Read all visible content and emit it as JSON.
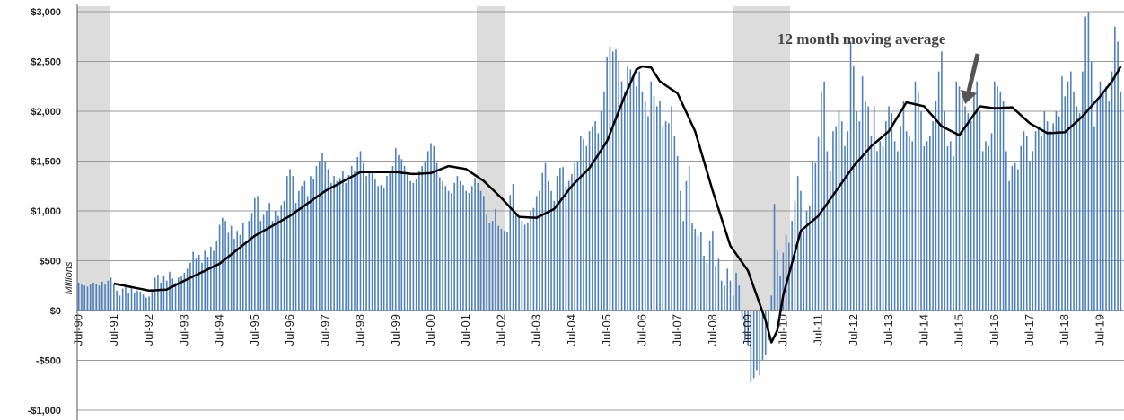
{
  "chart_data": {
    "type": "bar",
    "annotation": "12 month moving average",
    "y_label": "Millions",
    "ylim": [
      -1000,
      3000
    ],
    "yticks": [
      {
        "value": 3000,
        "label": "$3,000"
      },
      {
        "value": 2500,
        "label": "$2,500"
      },
      {
        "value": 2000,
        "label": "$2,000"
      },
      {
        "value": 1500,
        "label": "$1,500"
      },
      {
        "value": 1000,
        "label": "$1,000"
      },
      {
        "value": 500,
        "label": "$500"
      },
      {
        "value": 0,
        "label": "$0"
      },
      {
        "value": -500,
        "label": "-$500"
      },
      {
        "value": -1000,
        "label": "-$1,000"
      }
    ],
    "grid": true,
    "categories": [
      "Jul-90",
      null,
      null,
      null,
      null,
      null,
      null,
      null,
      null,
      null,
      null,
      null,
      "Jul-91",
      null,
      null,
      null,
      null,
      null,
      null,
      null,
      null,
      null,
      null,
      null,
      "Jul-92",
      null,
      null,
      null,
      null,
      null,
      null,
      null,
      null,
      null,
      null,
      null,
      "Jul-93",
      null,
      null,
      null,
      null,
      null,
      null,
      null,
      null,
      null,
      null,
      null,
      "Jul-94",
      null,
      null,
      null,
      null,
      null,
      null,
      null,
      null,
      null,
      null,
      null,
      "Jul-95",
      null,
      null,
      null,
      null,
      null,
      null,
      null,
      null,
      null,
      null,
      null,
      "Jul-96",
      null,
      null,
      null,
      null,
      null,
      null,
      null,
      null,
      null,
      null,
      null,
      "Jul-97",
      null,
      null,
      null,
      null,
      null,
      null,
      null,
      null,
      null,
      null,
      null,
      "Jul-98",
      null,
      null,
      null,
      null,
      null,
      null,
      null,
      null,
      null,
      null,
      null,
      "Jul-99",
      null,
      null,
      null,
      null,
      null,
      null,
      null,
      null,
      null,
      null,
      null,
      "Jul-00",
      null,
      null,
      null,
      null,
      null,
      null,
      null,
      null,
      null,
      null,
      null,
      "Jul-01",
      null,
      null,
      null,
      null,
      null,
      null,
      null,
      null,
      null,
      null,
      null,
      "Jul-02",
      null,
      null,
      null,
      null,
      null,
      null,
      null,
      null,
      null,
      null,
      null,
      "Jul-03",
      null,
      null,
      null,
      null,
      null,
      null,
      null,
      null,
      null,
      null,
      null,
      "Jul-04",
      null,
      null,
      null,
      null,
      null,
      null,
      null,
      null,
      null,
      null,
      null,
      "Jul-05",
      null,
      null,
      null,
      null,
      null,
      null,
      null,
      null,
      null,
      null,
      null,
      "Jul-06",
      null,
      null,
      null,
      null,
      null,
      null,
      null,
      null,
      null,
      null,
      null,
      "Jul-07",
      null,
      null,
      null,
      null,
      null,
      null,
      null,
      null,
      null,
      null,
      null,
      "Jul-08",
      null,
      null,
      null,
      null,
      null,
      null,
      null,
      null,
      null,
      null,
      null,
      "Jul-09",
      null,
      null,
      null,
      null,
      null,
      null,
      null,
      null,
      null,
      null,
      null,
      "Jul-10",
      null,
      null,
      null,
      null,
      null,
      null,
      null,
      null,
      null,
      null,
      null,
      "Jul-11",
      null,
      null,
      null,
      null,
      null,
      null,
      null,
      null,
      null,
      null,
      null,
      "Jul-12",
      null,
      null,
      null,
      null,
      null,
      null,
      null,
      null,
      null,
      null,
      null,
      "Jul-13",
      null,
      null,
      null,
      null,
      null,
      null,
      null,
      null,
      null,
      null,
      null,
      "Jul-14",
      null,
      null,
      null,
      null,
      null,
      null,
      null,
      null,
      null,
      null,
      null,
      "Jul-15",
      null,
      null,
      null,
      null,
      null,
      null,
      null,
      null,
      null,
      null,
      null,
      "Jul-16",
      null,
      null,
      null,
      null,
      null,
      null,
      null,
      null,
      null,
      null,
      null,
      "Jul-17",
      null,
      null,
      null,
      null,
      null,
      null,
      null,
      null,
      null,
      null,
      null,
      "Jul-18",
      null,
      null,
      null,
      null,
      null,
      null,
      null,
      null,
      null,
      null,
      null,
      "Jul-19",
      null,
      null,
      null,
      null,
      null,
      null,
      null
    ],
    "series": [
      {
        "type": "bar",
        "color": "#4f81bd",
        "values": [
          280,
          260,
          250,
          240,
          260,
          280,
          270,
          250,
          290,
          260,
          300,
          330,
          260,
          200,
          150,
          220,
          250,
          180,
          240,
          170,
          200,
          190,
          160,
          130,
          140,
          200,
          330,
          360,
          280,
          350,
          300,
          390,
          320,
          280,
          330,
          350,
          380,
          420,
          480,
          590,
          520,
          560,
          480,
          600,
          540,
          640,
          600,
          700,
          860,
          930,
          900,
          780,
          850,
          720,
          800,
          760,
          880,
          700,
          900,
          980,
          1130,
          1150,
          900,
          960,
          1000,
          1080,
          900,
          1000,
          950,
          1060,
          1100,
          1350,
          1420,
          1350,
          1080,
          1200,
          1250,
          1300,
          1150,
          1350,
          1320,
          1450,
          1500,
          1580,
          1500,
          1420,
          1280,
          1350,
          1300,
          1330,
          1400,
          1280,
          1360,
          1450,
          1400,
          1540,
          1600,
          1480,
          1350,
          1380,
          1400,
          1320,
          1250,
          1260,
          1230,
          1350,
          1400,
          1450,
          1630,
          1560,
          1520,
          1450,
          1380,
          1300,
          1280,
          1320,
          1400,
          1450,
          1500,
          1600,
          1680,
          1650,
          1480,
          1340,
          1300,
          1250,
          1200,
          1180,
          1280,
          1350,
          1300,
          1260,
          1200,
          1180,
          1250,
          1330,
          1280,
          1200,
          1150,
          960,
          880,
          900,
          1020,
          850,
          820,
          800,
          790,
          1160,
          1270,
          980,
          950,
          900,
          860,
          880,
          1000,
          1030,
          1150,
          1200,
          1380,
          1480,
          1300,
          1200,
          1100,
          1350,
          1430,
          1440,
          1250,
          1300,
          1370,
          1480,
          1500,
          1750,
          1720,
          1650,
          1800,
          1850,
          1900,
          1780,
          2000,
          2200,
          2550,
          2650,
          2600,
          2620,
          2500,
          2300,
          2200,
          2450,
          2420,
          2350,
          2250,
          2400,
          2200,
          2100,
          1950,
          2300,
          2150,
          2050,
          2100,
          1850,
          1900,
          1880,
          2050,
          1750,
          1550,
          1200,
          900,
          1300,
          1450,
          880,
          820,
          750,
          790,
          550,
          480,
          700,
          800,
          450,
          520,
          300,
          250,
          420,
          300,
          150,
          380,
          250,
          -100,
          -300,
          -350,
          -720,
          -680,
          -600,
          -650,
          -500,
          -450,
          -300,
          150,
          1070,
          600,
          350,
          580,
          760,
          680,
          900,
          1100,
          1350,
          1200,
          800,
          1000,
          1050,
          1500,
          1480,
          1740,
          2200,
          2300,
          1600,
          1400,
          1800,
          1850,
          2000,
          1900,
          1650,
          1800,
          2700,
          2450,
          2000,
          1900,
          2350,
          2100,
          2050,
          1750,
          2050,
          1600,
          1700,
          1650,
          1900,
          2050,
          1980,
          1700,
          1600,
          1850,
          2100,
          1800,
          1750,
          1700,
          2300,
          2200,
          2000,
          1650,
          1700,
          1750,
          1900,
          2100,
          2400,
          2600,
          2000,
          1650,
          1700,
          1550,
          2300,
          2250,
          2200,
          2050,
          1980,
          1900,
          2200,
          2300,
          2000,
          1600,
          1700,
          1650,
          1780,
          2300,
          2250,
          2200,
          2100,
          1600,
          1300,
          1450,
          1480,
          1420,
          1650,
          1800,
          1750,
          1500,
          1600,
          1800,
          1850,
          1750,
          2000,
          1900,
          1800,
          1880,
          2000,
          1950,
          2350,
          2150,
          2300,
          2400,
          2200,
          2050,
          1980,
          2400,
          2950,
          3000,
          2500,
          1850,
          2100,
          2300,
          2200,
          2250,
          2100,
          2400,
          2850,
          2700,
          2200
        ]
      },
      {
        "type": "line",
        "color": "#000000",
        "values": [
          null,
          null,
          null,
          null,
          null,
          null,
          null,
          null,
          null,
          null,
          null,
          null,
          270,
          264,
          258,
          253,
          247,
          241,
          235,
          229,
          223,
          218,
          212,
          206,
          200,
          202,
          203,
          205,
          207,
          208,
          210,
          225,
          240,
          255,
          270,
          285,
          300,
          314,
          328,
          343,
          357,
          371,
          385,
          399,
          413,
          428,
          442,
          456,
          470,
          493,
          517,
          540,
          563,
          587,
          610,
          633,
          657,
          680,
          703,
          727,
          750,
          767,
          783,
          800,
          817,
          833,
          850,
          867,
          883,
          900,
          917,
          933,
          950,
          971,
          992,
          1013,
          1033,
          1054,
          1075,
          1096,
          1117,
          1138,
          1158,
          1179,
          1200,
          1216,
          1232,
          1248,
          1263,
          1279,
          1295,
          1311,
          1327,
          1343,
          1358,
          1374,
          1390,
          1390,
          1390,
          1390,
          1390,
          1390,
          1390,
          1390,
          1390,
          1390,
          1390,
          1390,
          1390,
          1387,
          1383,
          1380,
          1377,
          1373,
          1370,
          1372,
          1373,
          1375,
          1377,
          1378,
          1380,
          1392,
          1403,
          1415,
          1427,
          1438,
          1450,
          1445,
          1440,
          1435,
          1430,
          1425,
          1420,
          1400,
          1380,
          1360,
          1340,
          1320,
          1300,
          1272,
          1243,
          1215,
          1187,
          1158,
          1130,
          1098,
          1067,
          1035,
          1003,
          972,
          940,
          938,
          937,
          935,
          933,
          932,
          930,
          945,
          960,
          975,
          990,
          1005,
          1020,
          1058,
          1097,
          1135,
          1173,
          1212,
          1250,
          1280,
          1310,
          1340,
          1370,
          1400,
          1430,
          1475,
          1520,
          1565,
          1610,
          1655,
          1700,
          1775,
          1850,
          1925,
          2000,
          2075,
          2150,
          2218,
          2285,
          2353,
          2420,
          2435,
          2450,
          2447,
          2443,
          2440,
          2393,
          2347,
          2300,
          2280,
          2260,
          2240,
          2220,
          2200,
          2180,
          2117,
          2053,
          1990,
          1927,
          1863,
          1800,
          1700,
          1600,
          1500,
          1400,
          1300,
          1200,
          1108,
          1017,
          925,
          833,
          742,
          650,
          608,
          567,
          525,
          483,
          442,
          400,
          317,
          233,
          150,
          67,
          -17,
          -100,
          -210,
          -320,
          -260,
          -200,
          -25,
          150,
          258,
          367,
          475,
          583,
          692,
          800,
          825,
          850,
          875,
          900,
          925,
          950,
          992,
          1033,
          1075,
          1117,
          1158,
          1200,
          1242,
          1283,
          1325,
          1367,
          1408,
          1450,
          1483,
          1517,
          1550,
          1583,
          1617,
          1650,
          1675,
          1700,
          1725,
          1750,
          1775,
          1800,
          1848,
          1897,
          1945,
          1993,
          2042,
          2090,
          2083,
          2077,
          2070,
          2063,
          2057,
          2050,
          2017,
          1983,
          1950,
          1917,
          1883,
          1850,
          1835,
          1820,
          1805,
          1790,
          1775,
          1760,
          1801,
          1843,
          1884,
          1926,
          1967,
          2009,
          2050,
          2046,
          2042,
          2038,
          2034,
          2030,
          2032,
          2033,
          2035,
          2037,
          2038,
          2040,
          2013,
          1987,
          1960,
          1933,
          1907,
          1880,
          1863,
          1847,
          1830,
          1813,
          1797,
          1780,
          1782,
          1783,
          1785,
          1787,
          1788,
          1790,
          1817,
          1843,
          1870,
          1897,
          1923,
          1950,
          1983,
          2017,
          2050,
          2083,
          2117,
          2150,
          2188,
          2225,
          2263,
          2300,
          2350,
          2400,
          2450
        ]
      }
    ]
  }
}
